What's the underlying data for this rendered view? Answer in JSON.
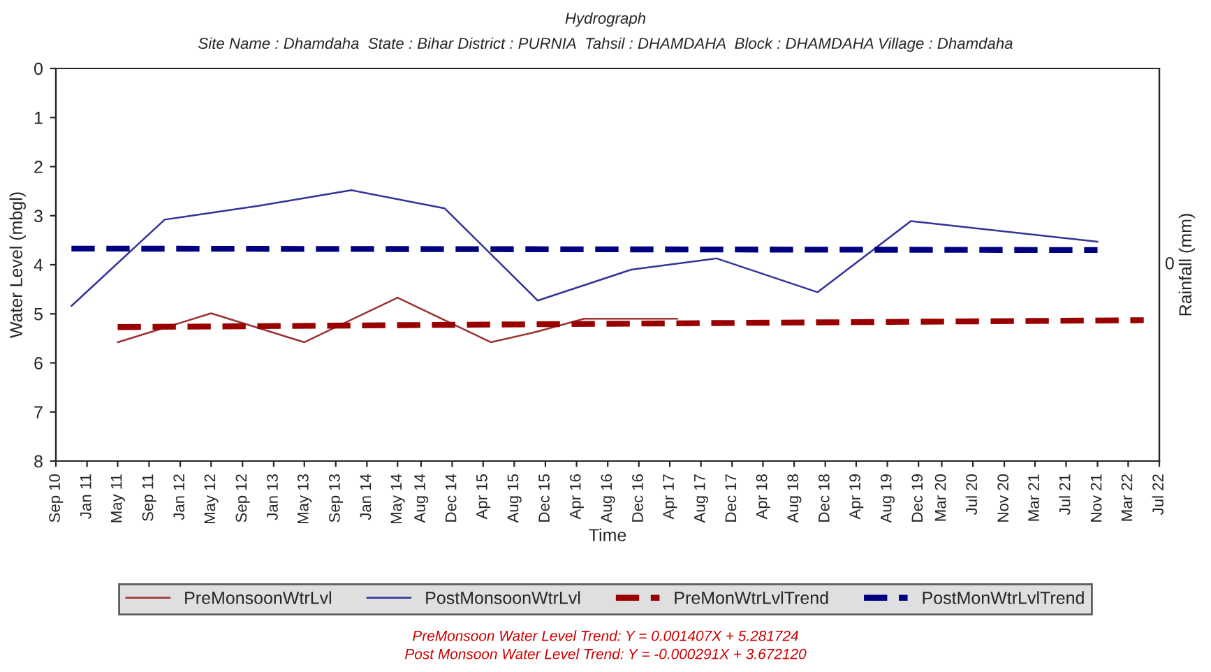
{
  "chart_data": {
    "type": "line",
    "title": "Hydrograph",
    "subtitle": "Site Name : Dhamdaha  State : Bihar District : PURNIA  Tahsil : DHAMDAHA  Block : DHAMDAHA Village : Dhamdaha",
    "xlabel": "Time",
    "ylabel": "Water Level (mbgl)",
    "y2label": "Rainfall (mm)",
    "xlim": [
      "2010-09",
      "2022-07"
    ],
    "ylim": [
      8,
      0
    ],
    "yticks": [
      0,
      1,
      2,
      3,
      4,
      5,
      6,
      7,
      8
    ],
    "xticks": [
      {
        "value": "2010-09",
        "label": "Sep 10"
      },
      {
        "value": "2011-01",
        "label": "Jan 11"
      },
      {
        "value": "2011-05",
        "label": "May 11"
      },
      {
        "value": "2011-09",
        "label": "Sep 11"
      },
      {
        "value": "2012-01",
        "label": "Jan 12"
      },
      {
        "value": "2012-05",
        "label": "May 12"
      },
      {
        "value": "2012-09",
        "label": "Sep 12"
      },
      {
        "value": "2013-01",
        "label": "Jan 13"
      },
      {
        "value": "2013-05",
        "label": "May 13"
      },
      {
        "value": "2013-09",
        "label": "Sep 13"
      },
      {
        "value": "2014-01",
        "label": "Jan 14"
      },
      {
        "value": "2014-05",
        "label": "May 14"
      },
      {
        "value": "2014-08",
        "label": "Aug 14"
      },
      {
        "value": "2014-12",
        "label": "Dec 14"
      },
      {
        "value": "2015-04",
        "label": "Apr 15"
      },
      {
        "value": "2015-08",
        "label": "Aug 15"
      },
      {
        "value": "2015-12",
        "label": "Dec 15"
      },
      {
        "value": "2016-04",
        "label": "Apr 16"
      },
      {
        "value": "2016-08",
        "label": "Aug 16"
      },
      {
        "value": "2016-12",
        "label": "Dec 16"
      },
      {
        "value": "2017-04",
        "label": "Apr 17"
      },
      {
        "value": "2017-08",
        "label": "Aug 17"
      },
      {
        "value": "2017-12",
        "label": "Dec 17"
      },
      {
        "value": "2018-04",
        "label": "Apr 18"
      },
      {
        "value": "2018-08",
        "label": "Aug 18"
      },
      {
        "value": "2018-12",
        "label": "Dec 18"
      },
      {
        "value": "2019-04",
        "label": "Apr 19"
      },
      {
        "value": "2019-08",
        "label": "Aug 19"
      },
      {
        "value": "2019-12",
        "label": "Dec 19"
      },
      {
        "value": "2020-03",
        "label": "Mar 20"
      },
      {
        "value": "2020-07",
        "label": "Jul 20"
      },
      {
        "value": "2020-11",
        "label": "Nov 20"
      },
      {
        "value": "2021-03",
        "label": "Mar 21"
      },
      {
        "value": "2021-07",
        "label": "Jul 21"
      },
      {
        "value": "2021-11",
        "label": "Nov 21"
      },
      {
        "value": "2022-03",
        "label": "Mar 22"
      },
      {
        "value": "2022-07",
        "label": "Jul 22"
      }
    ],
    "series": [
      {
        "name": "PreMonsoonWtrLvl",
        "color": "#993333",
        "line_style": "solid",
        "x": [
          "2011-05",
          "2012-05",
          "2013-05",
          "2014-05",
          "2015-05",
          "2015-11",
          "2016-05",
          "2017-05"
        ],
        "values": [
          5.58,
          4.99,
          5.58,
          4.67,
          5.58,
          5.36,
          5.1,
          5.1
        ]
      },
      {
        "name": "PostMonsoonWtrLvl",
        "color": "#333399",
        "line_style": "solid",
        "x": [
          "2010-11",
          "2011-11",
          "2012-11",
          "2013-11",
          "2014-11",
          "2015-11",
          "2016-11",
          "2017-10",
          "2018-11",
          "2019-11",
          "2021-11"
        ],
        "values": [
          4.84,
          3.08,
          2.8,
          2.48,
          2.85,
          4.73,
          4.1,
          3.87,
          4.56,
          3.11,
          3.53
        ]
      },
      {
        "name": "PreMonWtrLvlTrend",
        "color": "#990000",
        "line_style": "dashed",
        "x": [
          "2011-05",
          "2022-05"
        ],
        "values": [
          5.27,
          5.13
        ]
      },
      {
        "name": "PostMonWtrLvlTrend",
        "color": "#000080",
        "line_style": "dashed",
        "x": [
          "2010-11",
          "2021-11"
        ],
        "values": [
          3.67,
          3.7
        ]
      }
    ],
    "legend": "bottom",
    "annotations": [
      "0",
      "PreMonsoon Water Level Trend: Y = 0.001407X + 5.281724",
      "Post Monsoon Water Level Trend: Y = -0.000291X + 3.672120"
    ]
  }
}
